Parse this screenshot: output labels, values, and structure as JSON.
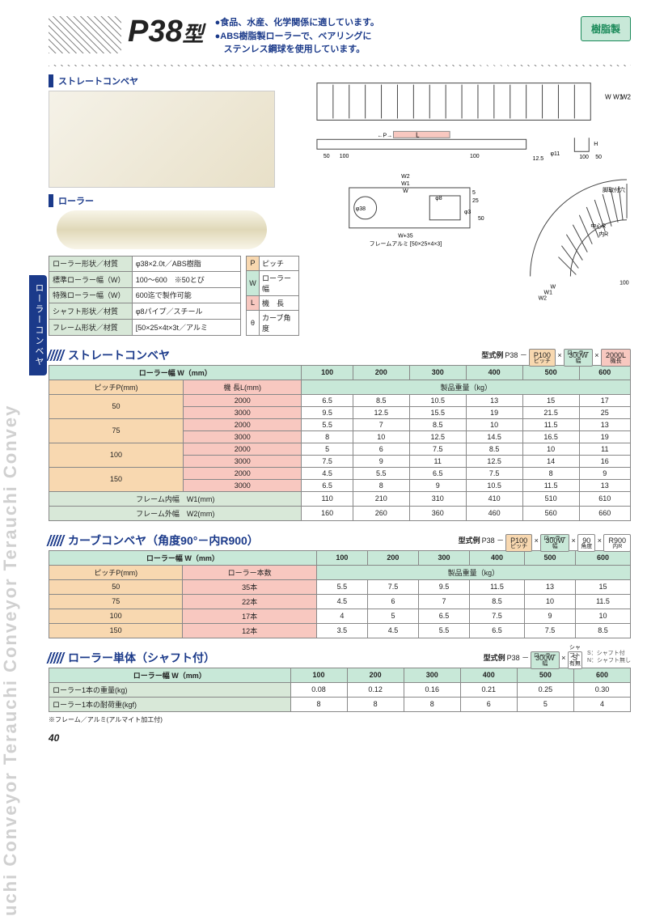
{
  "side_text": "uchi Conveyor Terauchi Conveyor Terauchi Convey",
  "side_tab": "ローラーコンベヤ",
  "header": {
    "model": "P38",
    "suffix": "型",
    "bullet1": "●食品、水産、化学関係に適しています。",
    "bullet2": "●ABS樹脂製ローラーで、ベアリングに",
    "bullet3": "　ステンレス鋼球を使用しています。",
    "badge": "樹脂製"
  },
  "photos": {
    "conveyor_label": "ストレートコンベヤ",
    "roller_label": "ローラー"
  },
  "spec_table": {
    "rows": [
      [
        "ローラー形状／材質",
        "φ38×2.0t／ABS樹脂"
      ],
      [
        "標準ローラー幅（W）",
        "100～600　※50とび"
      ],
      [
        "特殊ローラー幅（W）",
        "600迄で製作可能"
      ],
      [
        "シャフト形状／材質",
        "φ8パイプ／スチール"
      ],
      [
        "フレーム形状／材質",
        "[50×25×4t×3t／アルミ"
      ]
    ]
  },
  "legend": {
    "rows": [
      [
        "P",
        "ピッチ"
      ],
      [
        "W",
        "ローラー幅"
      ],
      [
        "L",
        "機　長"
      ],
      [
        "θ",
        "カーブ角度"
      ]
    ]
  },
  "diagram_labels": {
    "frame_note": "フレームアルミ [50×25×4×3]",
    "dims": [
      "W",
      "W1",
      "W2",
      "L",
      "P",
      "50",
      "100",
      "12.5",
      "φ11",
      "H",
      "W+35",
      "φ38",
      "φ8",
      "φ3",
      "5",
      "25",
      "脚取付穴",
      "中心R",
      "内R",
      "900",
      "300"
    ]
  },
  "section1": {
    "title": "ストレートコンベヤ",
    "example_label": "型式例",
    "example_prefix": "P38 －",
    "chips": [
      {
        "val": "P100",
        "sub": "ピッチ",
        "cls": "p"
      },
      {
        "val": "300W",
        "sub": "ローラー幅",
        "cls": "w"
      },
      {
        "val": "2000L",
        "sub": "機長",
        "cls": "l"
      }
    ],
    "header": [
      "ローラー幅 W（mm）",
      "100",
      "200",
      "300",
      "400",
      "500",
      "600"
    ],
    "sub_header_left": [
      "ピッチP(mm)",
      "機 長L(mm)"
    ],
    "weight_label": "製品重量（kg）",
    "rows": [
      {
        "pitch": "50",
        "len": "2000",
        "vals": [
          "6.5",
          "8.5",
          "10.5",
          "13",
          "15",
          "17"
        ]
      },
      {
        "pitch": "",
        "len": "3000",
        "vals": [
          "9.5",
          "12.5",
          "15.5",
          "19",
          "21.5",
          "25"
        ]
      },
      {
        "pitch": "75",
        "len": "2000",
        "vals": [
          "5.5",
          "7",
          "8.5",
          "10",
          "11.5",
          "13"
        ]
      },
      {
        "pitch": "",
        "len": "3000",
        "vals": [
          "8",
          "10",
          "12.5",
          "14.5",
          "16.5",
          "19"
        ]
      },
      {
        "pitch": "100",
        "len": "2000",
        "vals": [
          "5",
          "6",
          "7.5",
          "8.5",
          "10",
          "11"
        ]
      },
      {
        "pitch": "",
        "len": "3000",
        "vals": [
          "7.5",
          "9",
          "11",
          "12.5",
          "14",
          "16"
        ]
      },
      {
        "pitch": "150",
        "len": "2000",
        "vals": [
          "4.5",
          "5.5",
          "6.5",
          "7.5",
          "8",
          "9"
        ]
      },
      {
        "pitch": "",
        "len": "3000",
        "vals": [
          "6.5",
          "8",
          "9",
          "10.5",
          "11.5",
          "13"
        ]
      }
    ],
    "frame_rows": [
      {
        "label": "フレーム内幅　W1(mm)",
        "vals": [
          "110",
          "210",
          "310",
          "410",
          "510",
          "610"
        ]
      },
      {
        "label": "フレーム外幅　W2(mm)",
        "vals": [
          "160",
          "260",
          "360",
          "460",
          "560",
          "660"
        ]
      }
    ]
  },
  "section2": {
    "title": "カーブコンベヤ（角度90°－内R900）",
    "example_label": "型式例",
    "example_prefix": "P38 －",
    "chips": [
      {
        "val": "P100",
        "sub": "ピッチ",
        "cls": "p"
      },
      {
        "val": "300W",
        "sub": "ローラー幅",
        "cls": "w"
      },
      {
        "val": "90",
        "sub": "角度",
        "cls": "ang"
      },
      {
        "val": "R900",
        "sub": "内R",
        "cls": "r"
      }
    ],
    "header": [
      "ローラー幅 W（mm）",
      "100",
      "200",
      "300",
      "400",
      "500",
      "600"
    ],
    "sub_header_left": [
      "ピッチP(mm)",
      "ローラー本数"
    ],
    "weight_label": "製品重量（kg）",
    "rows": [
      {
        "pitch": "50",
        "count": "35本",
        "vals": [
          "5.5",
          "7.5",
          "9.5",
          "11.5",
          "13",
          "15"
        ]
      },
      {
        "pitch": "75",
        "count": "22本",
        "vals": [
          "4.5",
          "6",
          "7",
          "8.5",
          "10",
          "11.5"
        ]
      },
      {
        "pitch": "100",
        "count": "17本",
        "vals": [
          "4",
          "5",
          "6.5",
          "7.5",
          "9",
          "10"
        ]
      },
      {
        "pitch": "150",
        "count": "12本",
        "vals": [
          "3.5",
          "4.5",
          "5.5",
          "6.5",
          "7.5",
          "8.5"
        ]
      }
    ]
  },
  "section3": {
    "title": "ローラー単体（シャフト付）",
    "example_label": "型式例",
    "example_prefix": "P38 －",
    "chips": [
      {
        "val": "300W",
        "sub": "ローラー幅",
        "cls": "w"
      },
      {
        "val": "S",
        "sub": "シャフト有無",
        "cls": "ang"
      }
    ],
    "chip_note": "S：シャフト付\nN：シャフト無し",
    "header": [
      "ローラー幅 W（mm）",
      "100",
      "200",
      "300",
      "400",
      "500",
      "600"
    ],
    "rows": [
      {
        "label": "ローラー1本の重量(kg)",
        "vals": [
          "0.08",
          "0.12",
          "0.16",
          "0.21",
          "0.25",
          "0.30"
        ]
      },
      {
        "label": "ローラー1本の耐荷重(kgf)",
        "vals": [
          "8",
          "8",
          "8",
          "6",
          "5",
          "4"
        ]
      }
    ]
  },
  "footnote": "※フレーム／アルミ(アルマイト加工付)",
  "page_number": "40"
}
